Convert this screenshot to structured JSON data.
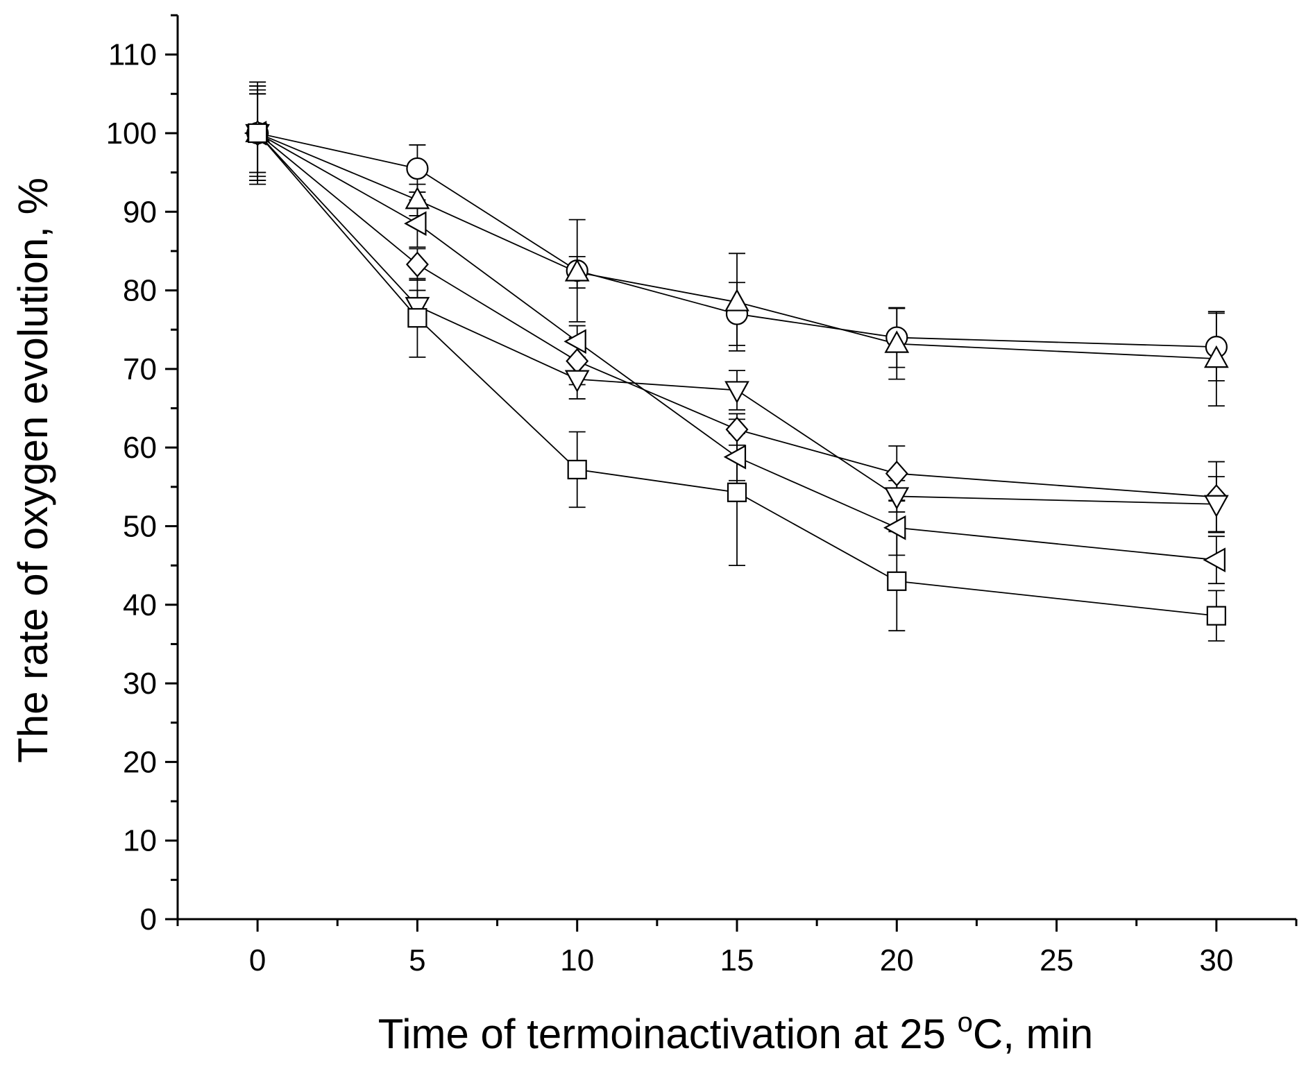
{
  "chart_data": {
    "type": "line",
    "title": "",
    "xlabel": "Time of termoinactivation at 25 °C, min",
    "xlabel_parts": {
      "before": "Time of termoinactivation at 25 ",
      "degree": "o",
      "after": "C, min"
    },
    "ylabel": "The rate of oxygen evolution, %",
    "xlim": [
      -2.5,
      32.5
    ],
    "ylim": [
      0,
      115
    ],
    "x_ticks": [
      0,
      5,
      10,
      15,
      20,
      25,
      30
    ],
    "y_ticks": [
      0,
      10,
      20,
      30,
      40,
      50,
      60,
      70,
      80,
      90,
      100,
      110
    ],
    "grid": false,
    "series": [
      {
        "name": "circle",
        "marker": "circle",
        "x": [
          0,
          5,
          10,
          15,
          20,
          30
        ],
        "values": [
          100,
          95.5,
          82.5,
          77,
          74,
          72.8
        ],
        "errors": [
          6.5,
          3,
          6.5,
          4,
          3.8,
          4.3
        ]
      },
      {
        "name": "triangle-up",
        "marker": "triangle-up",
        "x": [
          0,
          5,
          10,
          15,
          20,
          30
        ],
        "values": [
          100,
          91.5,
          82.3,
          78.5,
          73.2,
          71.3
        ],
        "errors": [
          6,
          2,
          2,
          6.2,
          4.5,
          6
        ]
      },
      {
        "name": "triangle-left",
        "marker": "triangle-left",
        "x": [
          0,
          5,
          10,
          15,
          20,
          30
        ],
        "values": [
          100,
          88.5,
          73.5,
          58.8,
          49.8,
          45.7
        ],
        "errors": [
          5.5,
          3,
          2,
          3,
          3.5,
          3
        ]
      },
      {
        "name": "diamond",
        "marker": "diamond",
        "x": [
          0,
          5,
          10,
          15,
          20,
          30
        ],
        "values": [
          100,
          83.3,
          71,
          62.3,
          56.7,
          53.7
        ],
        "errors": [
          5,
          2,
          3,
          2,
          3.5,
          4.5
        ]
      },
      {
        "name": "triangle-down",
        "marker": "triangle-down",
        "x": [
          0,
          5,
          10,
          15,
          20,
          30
        ],
        "values": [
          100,
          78,
          68.7,
          67.3,
          53.8,
          52.8
        ],
        "errors": [
          5,
          2,
          2.5,
          2.5,
          2,
          3.5
        ]
      },
      {
        "name": "square",
        "marker": "square",
        "x": [
          0,
          5,
          10,
          15,
          20,
          30
        ],
        "values": [
          100,
          76.5,
          57.2,
          54.3,
          43,
          38.6
        ],
        "errors": [
          6,
          5,
          4.8,
          9.3,
          6.3,
          3.2
        ]
      }
    ]
  }
}
